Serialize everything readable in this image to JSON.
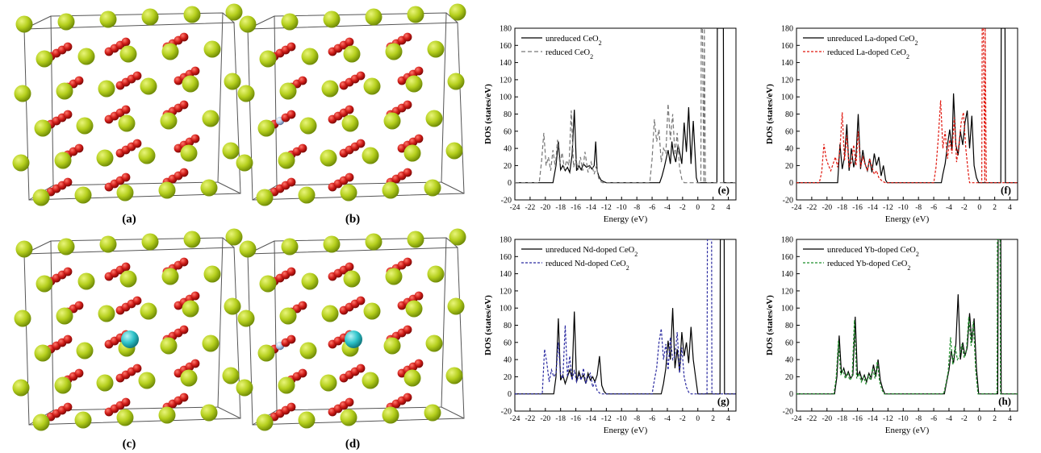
{
  "colors": {
    "ce": "#b5cf1d",
    "ce_dark": "#6f8a06",
    "o": "#d01c18",
    "o_dark": "#7a0806",
    "dopant": "#2ec3c9",
    "vacancy": "#a7bfe0",
    "line_black": "#000000",
    "line_gray": "#777777",
    "line_red": "#e0180f",
    "line_blue": "#2a2aa0",
    "line_green": "#1f8f2a"
  },
  "structures": [
    {
      "label": "(a)",
      "dopant": false,
      "vacancy": false
    },
    {
      "label": "(b)",
      "dopant": false,
      "vacancy": true
    },
    {
      "label": "(c)",
      "dopant": true,
      "vacancy": false
    },
    {
      "label": "(d)",
      "dopant": true,
      "vacancy": true
    }
  ],
  "chart_data": [
    {
      "type": "line",
      "panel_label": "(e)",
      "xlabel": "Energy (eV)",
      "ylabel": "DOS (states/eV)",
      "xlim": [
        -24,
        5
      ],
      "ylim": [
        -20,
        180
      ],
      "xticks": [
        -24,
        -22,
        -20,
        -18,
        -16,
        -14,
        -12,
        -10,
        -8,
        -6,
        -4,
        -2,
        0,
        2,
        4
      ],
      "yticks": [
        -20,
        0,
        20,
        40,
        60,
        80,
        100,
        120,
        140,
        160,
        180
      ],
      "legend": {
        "position": "top-left"
      },
      "series": [
        {
          "name_html": "unreduced CeO<tspan baseline-shift=\"sub\" font-size=\"8\">2</tspan>",
          "name": "unreduced CeO2",
          "color": "line_black",
          "dash": "",
          "x": [
            -24,
            -19,
            -18.8,
            -18.6,
            -18.3,
            -18,
            -17.7,
            -17.4,
            -17.1,
            -16.8,
            -16.5,
            -16.2,
            -15.9,
            -15.6,
            -15.3,
            -15,
            -14.6,
            -14.2,
            -13.9,
            -13.6,
            -13.4,
            -13.2,
            -13,
            -12.7,
            -12.3,
            -12,
            -5,
            -4.7,
            -4.4,
            -4.1,
            -3.9,
            -3.6,
            -3.4,
            -3.2,
            -2.9,
            -2.6,
            -2.3,
            -2.1,
            -1.8,
            -1.5,
            -1.2,
            -0.9,
            -0.6,
            -0.2,
            0,
            2.5,
            2.55,
            2.6,
            3.3,
            3.35,
            3.4,
            5
          ],
          "y": [
            0,
            0,
            10,
            20,
            48,
            15,
            20,
            14,
            18,
            12,
            32,
            85,
            14,
            20,
            15,
            22,
            18,
            20,
            16,
            20,
            48,
            14,
            8,
            3,
            1,
            0,
            0,
            8,
            18,
            30,
            38,
            22,
            48,
            34,
            24,
            44,
            32,
            22,
            70,
            36,
            88,
            22,
            72,
            6,
            0,
            0,
            180,
            180,
            180,
            180,
            0,
            0
          ]
        },
        {
          "name_html": "reduced CeO<tspan baseline-shift=\"sub\" font-size=\"8\">2</tspan>",
          "name": "reduced CeO2",
          "color": "line_gray",
          "dash": "5,3",
          "x": [
            -24,
            -20.8,
            -20.5,
            -20.2,
            -19.9,
            -19.6,
            -19.3,
            -19,
            -18.7,
            -18.4,
            -18.1,
            -17.8,
            -17.5,
            -17.2,
            -16.9,
            -16.6,
            -16.3,
            -16,
            -15.7,
            -15.4,
            -15.1,
            -14.8,
            -14.4,
            -14,
            -13.6,
            -13.3,
            -13,
            -12.7,
            -12.5,
            -6.3,
            -6,
            -5.7,
            -5.4,
            -5.1,
            -4.8,
            -4.5,
            -4.2,
            -3.9,
            -3.6,
            -3.3,
            -3,
            -2.7,
            -2.4,
            -2.1,
            -1.8,
            0.4,
            0.45,
            0.6,
            0.8,
            0.85,
            1.0,
            5
          ],
          "y": [
            0,
            0,
            25,
            58,
            20,
            30,
            14,
            38,
            18,
            50,
            22,
            35,
            16,
            26,
            20,
            84,
            18,
            28,
            15,
            30,
            14,
            36,
            12,
            24,
            10,
            20,
            5,
            1,
            0,
            0,
            28,
            74,
            48,
            62,
            24,
            40,
            34,
            92,
            50,
            80,
            32,
            58,
            18,
            4,
            0,
            0,
            180,
            180,
            0,
            180,
            0,
            0
          ]
        }
      ]
    },
    {
      "type": "line",
      "panel_label": "(f)",
      "xlabel": "Energy (eV)",
      "ylabel": "DOS (states/eV)",
      "xlim": [
        -24,
        5
      ],
      "ylim": [
        -20,
        180
      ],
      "xticks": [
        -24,
        -22,
        -20,
        -18,
        -16,
        -14,
        -12,
        -10,
        -8,
        -6,
        -4,
        -2,
        0,
        2,
        4
      ],
      "yticks": [
        -20,
        0,
        20,
        40,
        60,
        80,
        100,
        120,
        140,
        160,
        180
      ],
      "legend": {
        "position": "top-left"
      },
      "series": [
        {
          "name_html": "unreduced La-doped CeO<tspan baseline-shift=\"sub\" font-size=\"8\">2</tspan>",
          "name": "unreduced La-doped CeO2",
          "color": "line_black",
          "dash": "",
          "x": [
            -24,
            -18.6,
            -18.3,
            -18,
            -17.7,
            -17.4,
            -17.1,
            -16.8,
            -16.5,
            -16.2,
            -15.9,
            -15.6,
            -15.3,
            -15,
            -14.7,
            -14.4,
            -14.1,
            -13.8,
            -13.5,
            -13.2,
            -12.9,
            -12.6,
            -12.3,
            -12.1,
            -5,
            -4.8,
            -4.5,
            -4.2,
            -3.9,
            -3.6,
            -3.4,
            -3.1,
            -2.8,
            -2.5,
            -2.2,
            -1.9,
            -1.6,
            -1.3,
            -1.0,
            -0.7,
            -0.4,
            -0.1,
            2.8,
            2.85,
            2.9,
            3.3,
            3.35,
            3.4,
            5
          ],
          "y": [
            0,
            0,
            45,
            16,
            30,
            68,
            14,
            40,
            18,
            30,
            80,
            16,
            38,
            22,
            14,
            28,
            12,
            34,
            20,
            30,
            8,
            20,
            3,
            0,
            0,
            10,
            22,
            44,
            62,
            38,
            104,
            44,
            32,
            60,
            44,
            70,
            84,
            40,
            78,
            20,
            6,
            0,
            0,
            180,
            180,
            180,
            180,
            0,
            0
          ]
        },
        {
          "name_html": "reduced La-doped CeO<tspan baseline-shift=\"sub\" font-size=\"8\">2</tspan>",
          "name": "reduced La-doped CeO2",
          "color": "line_red",
          "dash": "3,2",
          "x": [
            -24,
            -21,
            -20.7,
            -20.4,
            -20.1,
            -19.8,
            -19.5,
            -19.2,
            -18.9,
            -18.6,
            -18.3,
            -18,
            -17.7,
            -17.4,
            -17.1,
            -16.8,
            -16.5,
            -16.2,
            -15.9,
            -15.6,
            -15.3,
            -15,
            -14.7,
            -14.4,
            -14.1,
            -13.8,
            -13.5,
            -13.2,
            -12.9,
            -12.6,
            -12.3,
            -6,
            -5.7,
            -5.4,
            -5.1,
            -4.8,
            -4.5,
            -4.2,
            -3.9,
            -3.6,
            -3.3,
            -3,
            -2.7,
            -2.4,
            -2.1,
            -1.8,
            -1.5,
            -1.3,
            0.3,
            0.35,
            0.5,
            0.7,
            0.75,
            0.9,
            5
          ],
          "y": [
            0,
            0,
            12,
            45,
            28,
            20,
            14,
            22,
            30,
            18,
            40,
            82,
            26,
            55,
            18,
            24,
            44,
            20,
            60,
            18,
            30,
            22,
            14,
            28,
            18,
            10,
            14,
            6,
            3,
            1,
            0,
            0,
            18,
            52,
            96,
            40,
            60,
            28,
            50,
            34,
            76,
            24,
            44,
            70,
            82,
            40,
            14,
            0,
            0,
            180,
            180,
            0,
            180,
            0,
            0
          ]
        }
      ]
    },
    {
      "type": "line",
      "panel_label": "(g)",
      "xlabel": "Energy (eV)",
      "ylabel": "DOS (states/eV)",
      "xlim": [
        -24,
        5
      ],
      "ylim": [
        -20,
        180
      ],
      "xticks": [
        -24,
        -22,
        -20,
        -18,
        -16,
        -14,
        -12,
        -10,
        -8,
        -6,
        -4,
        -2,
        0,
        2,
        4
      ],
      "yticks": [
        -20,
        0,
        20,
        40,
        60,
        80,
        100,
        120,
        140,
        160,
        180
      ],
      "legend": {
        "position": "top-left"
      },
      "series": [
        {
          "name_html": "unreduced Nd-doped CeO<tspan baseline-shift=\"sub\" font-size=\"8\">2</tspan>",
          "name": "unreduced Nd-doped CeO2",
          "color": "line_black",
          "dash": "",
          "x": [
            -24,
            -18.9,
            -18.6,
            -18.3,
            -18,
            -17.7,
            -17.4,
            -17.1,
            -16.8,
            -16.5,
            -16.2,
            -15.9,
            -15.6,
            -15.3,
            -15,
            -14.7,
            -14.4,
            -14.1,
            -13.8,
            -13.5,
            -13.2,
            -12.9,
            -12.6,
            -12.3,
            -12,
            -4.8,
            -4.5,
            -4.2,
            -3.9,
            -3.6,
            -3.3,
            -3.0,
            -2.7,
            -2.4,
            -2.1,
            -1.8,
            -1.5,
            -1.2,
            -0.9,
            -0.6,
            -0.3,
            0,
            2.9,
            2.95,
            3.0,
            3.4,
            3.45,
            3.5,
            5
          ],
          "y": [
            0,
            0,
            20,
            88,
            16,
            22,
            12,
            20,
            28,
            18,
            96,
            14,
            26,
            18,
            22,
            12,
            24,
            16,
            20,
            14,
            22,
            44,
            10,
            3,
            0,
            0,
            12,
            30,
            62,
            40,
            100,
            30,
            52,
            26,
            72,
            44,
            60,
            36,
            78,
            40,
            20,
            0,
            0,
            180,
            180,
            180,
            180,
            0,
            0
          ]
        },
        {
          "name_html": "reduced Nd-doped CeO<tspan baseline-shift=\"sub\" font-size=\"8\">2</tspan>",
          "name": "reduced Nd-doped CeO2",
          "color": "line_blue",
          "dash": "3,2",
          "x": [
            -24,
            -20.4,
            -20.1,
            -19.8,
            -19.5,
            -19.2,
            -18.9,
            -18.6,
            -18.3,
            -18,
            -17.7,
            -17.4,
            -17.1,
            -16.8,
            -16.5,
            -16.2,
            -15.9,
            -15.6,
            -15.3,
            -15,
            -14.7,
            -14.4,
            -14.1,
            -13.8,
            -13.5,
            -13.2,
            -12.9,
            -12.6,
            -6.0,
            -5.7,
            -5.4,
            -5.1,
            -4.8,
            -4.5,
            -4.2,
            -3.9,
            -3.6,
            -3.3,
            -3.0,
            -2.7,
            -2.4,
            -2.1,
            -1.8,
            -1.5,
            -1.2,
            -0.9,
            1.2,
            1.25,
            1.4,
            1.8,
            1.85,
            2.0,
            5
          ],
          "y": [
            0,
            0,
            52,
            36,
            14,
            28,
            20,
            24,
            60,
            22,
            18,
            80,
            20,
            44,
            16,
            28,
            14,
            22,
            16,
            30,
            12,
            20,
            24,
            8,
            14,
            4,
            1,
            0,
            0,
            16,
            30,
            60,
            76,
            40,
            58,
            28,
            66,
            40,
            44,
            72,
            24,
            54,
            20,
            8,
            2,
            0,
            0,
            180,
            180,
            180,
            0,
            0,
            0
          ]
        }
      ]
    },
    {
      "type": "line",
      "panel_label": "(h)",
      "xlabel": "Energy (eV)",
      "ylabel": "DOS (states/eV)",
      "xlim": [
        -24,
        5
      ],
      "ylim": [
        -20,
        180
      ],
      "xticks": [
        -24,
        -22,
        -20,
        -18,
        -16,
        -14,
        -12,
        -10,
        -8,
        -6,
        -4,
        -2,
        0,
        2,
        4
      ],
      "yticks": [
        -20,
        0,
        20,
        40,
        60,
        80,
        100,
        120,
        140,
        160,
        180
      ],
      "legend": {
        "position": "top-left"
      },
      "series": [
        {
          "name_html": "unreduced Yb-doped CeO<tspan baseline-shift=\"sub\" font-size=\"8\">2</tspan>",
          "name": "unreduced Yb-doped CeO2",
          "color": "line_black",
          "dash": "",
          "x": [
            -24,
            -19,
            -18.7,
            -18.4,
            -18.1,
            -17.8,
            -17.5,
            -17.2,
            -16.9,
            -16.6,
            -16.3,
            -16.0,
            -15.7,
            -15.4,
            -15.1,
            -14.8,
            -14.5,
            -14.2,
            -13.9,
            -13.6,
            -13.3,
            -13.0,
            -12.7,
            -12.4,
            -4.6,
            -4.3,
            -4.0,
            -3.7,
            -3.4,
            -3.1,
            -2.8,
            -2.5,
            -2.2,
            -1.9,
            -1.6,
            -1.3,
            -1.0,
            -0.7,
            -0.4,
            -0.1,
            2.4,
            2.45,
            2.6,
            2.8,
            2.85,
            3.0,
            5
          ],
          "y": [
            0,
            0,
            20,
            68,
            24,
            30,
            20,
            26,
            18,
            22,
            90,
            20,
            26,
            16,
            22,
            14,
            24,
            18,
            34,
            20,
            40,
            16,
            6,
            0,
            0,
            14,
            28,
            50,
            36,
            58,
            116,
            40,
            60,
            44,
            54,
            94,
            60,
            88,
            30,
            0,
            0,
            180,
            180,
            180,
            0,
            0,
            0
          ]
        },
        {
          "name_html": "reduced Yb-doped CeO<tspan baseline-shift=\"sub\" font-size=\"8\">2</tspan>",
          "name": "reduced Yb-doped CeO2",
          "color": "line_green",
          "dash": "3,2",
          "x": [
            -24,
            -19.1,
            -18.8,
            -18.5,
            -18.2,
            -17.9,
            -17.6,
            -17.3,
            -17.0,
            -16.7,
            -16.4,
            -16.1,
            -15.8,
            -15.5,
            -15.2,
            -14.9,
            -14.6,
            -14.3,
            -14.0,
            -13.7,
            -13.4,
            -13.1,
            -12.8,
            -12.5,
            -4.7,
            -4.4,
            -4.1,
            -3.8,
            -3.5,
            -3.2,
            -2.9,
            -2.6,
            -2.3,
            -2.0,
            -1.7,
            -1.4,
            -1.1,
            -0.8,
            -0.5,
            -0.2,
            2.3,
            2.35,
            2.5,
            2.7,
            2.75,
            2.9,
            5
          ],
          "y": [
            0,
            0,
            18,
            62,
            22,
            28,
            18,
            24,
            16,
            20,
            86,
            18,
            24,
            14,
            20,
            12,
            22,
            16,
            30,
            18,
            38,
            14,
            5,
            0,
            0,
            12,
            26,
            66,
            34,
            56,
            40,
            44,
            58,
            42,
            52,
            90,
            56,
            84,
            28,
            0,
            0,
            180,
            180,
            180,
            0,
            0,
            0
          ]
        }
      ]
    }
  ]
}
